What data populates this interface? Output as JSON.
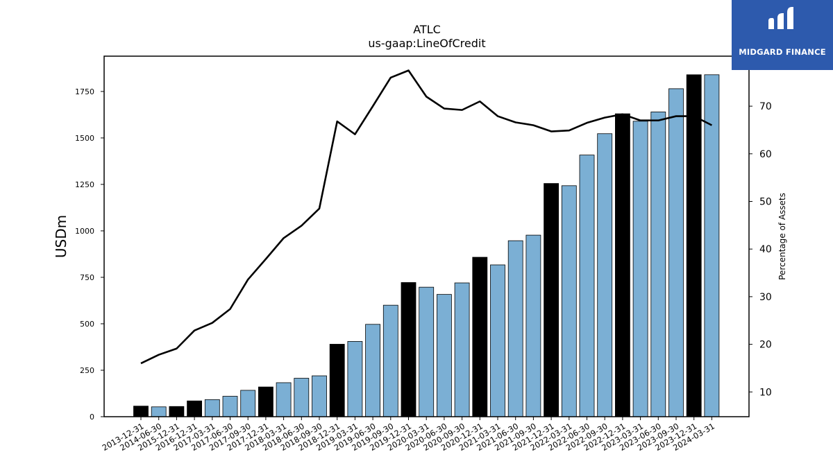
{
  "brand": {
    "name": "MIDGARD FINANCE",
    "bg_color": "#2d5aad",
    "logo_icon": "mf-logo-icon"
  },
  "chart_data": {
    "type": "bar+line",
    "title": "ATLC",
    "subtitle": "us-gaap:LineOfCredit",
    "ylabel": "USDm",
    "y2label": "Percentage of Assets",
    "ylim": [
      0,
      1940
    ],
    "y2lim": [
      4.8,
      80.5
    ],
    "yticks": [
      0,
      250,
      500,
      750,
      1000,
      1250,
      1500,
      1750
    ],
    "yticklabels": [
      "0",
      "250",
      "500",
      "750",
      "1000",
      "1250",
      "1500",
      "1750"
    ],
    "y2ticks": [
      10,
      20,
      30,
      40,
      50,
      60,
      70
    ],
    "categories": [
      "2013-12-31",
      "2014-06-30",
      "2015-12-31",
      "2016-12-31",
      "2017-03-31",
      "2017-06-30",
      "2017-09-30",
      "2017-12-31",
      "2018-03-31",
      "2018-06-30",
      "2018-09-30",
      "2018-12-31",
      "2019-03-31",
      "2019-06-30",
      "2019-09-30",
      "2019-12-31",
      "2020-03-31",
      "2020-06-30",
      "2020-09-30",
      "2020-12-31",
      "2021-03-31",
      "2021-06-30",
      "2021-09-30",
      "2021-12-31",
      "2022-03-31",
      "2022-06-30",
      "2022-09-30",
      "2022-12-31",
      "2023-03-31",
      "2023-06-30",
      "2023-09-30",
      "2023-12-31",
      "2024-03-31"
    ],
    "series": [
      {
        "kind": "bar",
        "values": [
          57,
          53,
          55,
          85,
          92,
          110,
          142,
          160,
          183,
          207,
          220,
          390,
          405,
          497,
          600,
          722,
          697,
          658,
          720,
          858,
          817,
          947,
          977,
          1255,
          1243,
          1408,
          1523,
          1630,
          1590,
          1640,
          1765,
          1840,
          1840
        ],
        "year_end": [
          true,
          false,
          true,
          true,
          false,
          false,
          false,
          true,
          false,
          false,
          false,
          true,
          false,
          false,
          false,
          true,
          false,
          false,
          false,
          true,
          false,
          false,
          false,
          true,
          false,
          false,
          false,
          true,
          false,
          false,
          false,
          true,
          false
        ]
      },
      {
        "kind": "line",
        "axis": "right",
        "values": [
          16,
          17.8,
          19.1,
          22.9,
          24.5,
          27.4,
          33.6,
          37.9,
          42.3,
          44.9,
          48.5,
          66.8,
          64.1,
          70,
          76,
          77.5,
          72,
          69.5,
          69.2,
          71,
          67.9,
          66.6,
          66,
          64.7,
          64.9,
          66.5,
          67.6,
          68.3,
          67,
          67,
          67.9,
          67.9,
          66
        ]
      }
    ],
    "colors": {
      "bar_year_end": "#000000",
      "bar_other": "#7bafd4",
      "line": "#000000"
    },
    "legend": "none",
    "grid": false
  }
}
